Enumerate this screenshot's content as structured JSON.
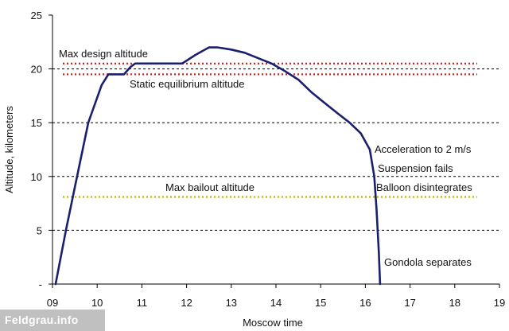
{
  "chart_data": {
    "type": "line",
    "title": "",
    "xlabel": "Moscow time",
    "ylabel": "Altitude, kilometers",
    "xlim": [
      9,
      19
    ],
    "ylim": [
      0,
      25
    ],
    "x_tick_labels": [
      "09",
      "10",
      "11",
      "12",
      "13",
      "14",
      "15",
      "16",
      "17",
      "18",
      "19"
    ],
    "y_tick_labels": [
      "-",
      "5",
      "10",
      "15",
      "20",
      "25"
    ],
    "grid": "horizontal dashed",
    "series": [
      {
        "color": "#1a1f6e",
        "x": [
          9.07,
          9.3,
          9.55,
          9.8,
          10.1,
          10.25,
          10.45,
          10.6,
          10.75,
          10.85,
          11.0,
          11.4,
          11.9,
          12.2,
          12.5,
          12.7,
          13.0,
          13.3,
          13.6,
          13.9,
          14.2,
          14.5,
          14.8,
          15.1,
          15.4,
          15.65,
          15.9,
          16.1,
          16.2,
          16.25,
          16.3,
          16.33
        ],
        "y": [
          0,
          5,
          10,
          15,
          18.5,
          19.5,
          19.5,
          19.5,
          20.2,
          20.5,
          20.5,
          20.5,
          20.5,
          21.3,
          22.0,
          22.0,
          21.8,
          21.5,
          21.0,
          20.5,
          19.8,
          19.0,
          17.8,
          16.8,
          15.8,
          15.0,
          14.0,
          12.5,
          10.0,
          7.0,
          3.0,
          0
        ]
      }
    ],
    "reference_lines": [
      {
        "label": "Max design altitude",
        "y": 20.5,
        "color": "#d42020"
      },
      {
        "label": "Static equilibrium altitude",
        "y": 19.5,
        "color": "#d42020"
      },
      {
        "label": "Max bailout altitude",
        "y": 8.1,
        "color": "#b4b800"
      }
    ],
    "annotations": [
      "Acceleration to 2 m/s",
      "Suspension fails",
      "Balloon disintegrates",
      "Gondola separates"
    ]
  },
  "watermark": "Feldgrau.info"
}
